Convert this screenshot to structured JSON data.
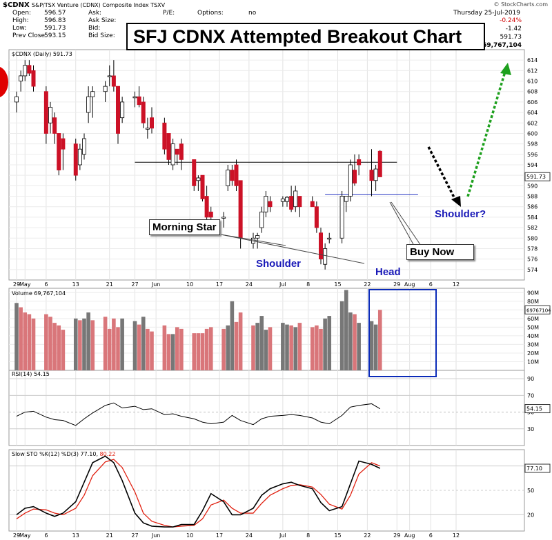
{
  "header": {
    "symbol": "$CDNX",
    "name": "S&P/TSX Venture (CDNX) Composite Index  TSXV",
    "watermark": "© StockCharts.com",
    "date": "Thursday   25-Jul-2019",
    "change_pct": "-0.24%",
    "change": "-1.42",
    "close_value": "591.73",
    "volume_value": "69,767,104",
    "fields": [
      {
        "label": "Open:",
        "value": "596.57"
      },
      {
        "label": "High:",
        "value": "596.83"
      },
      {
        "label": "Low:",
        "value": "591.73"
      },
      {
        "label": "Prev Close:",
        "value": "593.15"
      }
    ],
    "fields2": [
      "Ask:",
      "Ask Size:",
      "Bid:",
      "Bid Size:"
    ],
    "fields3": [
      {
        "label": "P/E:",
        "value": ""
      },
      {
        "label": "Options:",
        "value": "no"
      }
    ]
  },
  "title_box": "SFJ CDNX Attempted Breakout Chart",
  "annotations": {
    "morning_star": "Morning Star",
    "shoulder_left": "Shoulder",
    "head": "Head",
    "buy_now": "Buy Now",
    "shoulder_right": "Shoulder?"
  },
  "colors": {
    "up_candle": "#ffffff",
    "down_candle": "#cc1126",
    "volume_up": "#777777",
    "volume_down": "#d9767a",
    "rsi_line": "#000000",
    "sto_k": "#000000",
    "sto_d": "#e02010",
    "neckline": "#000000",
    "target_arrow": "#1ea01e",
    "down_arrow": "#000000",
    "highlight_box": "#0a2ab8",
    "blue_text": "#1a1ab8"
  },
  "chart_data": [
    {
      "type": "candlestick",
      "title": "$CDNX (Daily) 591.73",
      "ylim": [
        572,
        616
      ],
      "y_ticks": [
        574,
        576,
        578,
        580,
        582,
        584,
        586,
        588,
        590,
        592,
        594,
        596,
        598,
        600,
        602,
        604,
        606,
        608,
        610,
        612,
        614
      ],
      "last_value_label": "591.73",
      "x_tick_labels": [
        "29",
        "May",
        "6",
        "13",
        "21",
        "27",
        "Jun",
        "10",
        "17",
        "24",
        "Jul",
        "8",
        "15",
        "22",
        "29",
        "Aug",
        "6",
        "12"
      ],
      "x_tick_days": [
        0,
        2,
        7,
        14,
        22,
        28,
        33,
        41,
        48,
        55,
        63,
        69,
        76,
        83,
        90,
        93,
        98,
        104
      ],
      "neckline": {
        "y": 594.5,
        "from_day": 28,
        "to_day": 90
      },
      "shoulder_line": {
        "y": 588.3,
        "from_day": 73,
        "to_day": 95
      },
      "candles": [
        {
          "d": 0,
          "o": 606,
          "h": 608,
          "l": 604,
          "c": 607
        },
        {
          "d": 1,
          "o": 610,
          "h": 612,
          "l": 608,
          "c": 611
        },
        {
          "d": 2,
          "o": 611,
          "h": 614,
          "l": 610,
          "c": 613
        },
        {
          "d": 3,
          "o": 613,
          "h": 614,
          "l": 611,
          "c": 611.5
        },
        {
          "d": 4,
          "o": 612,
          "h": 613,
          "l": 608,
          "c": 609
        },
        {
          "d": 7,
          "o": 608,
          "h": 609,
          "l": 598,
          "c": 600
        },
        {
          "d": 8,
          "o": 602,
          "h": 606,
          "l": 600,
          "c": 605
        },
        {
          "d": 9,
          "o": 603,
          "h": 604,
          "l": 598,
          "c": 600
        },
        {
          "d": 10,
          "o": 600,
          "h": 600,
          "l": 592,
          "c": 593
        },
        {
          "d": 11,
          "o": 599,
          "h": 600,
          "l": 593,
          "c": 597
        },
        {
          "d": 14,
          "o": 598,
          "h": 599,
          "l": 591,
          "c": 592
        },
        {
          "d": 15,
          "o": 594,
          "h": 598,
          "l": 593,
          "c": 597
        },
        {
          "d": 16,
          "o": 596,
          "h": 600,
          "l": 595,
          "c": 599
        },
        {
          "d": 17,
          "o": 604,
          "h": 609,
          "l": 602,
          "c": 607
        },
        {
          "d": 18,
          "o": 607,
          "h": 609,
          "l": 603,
          "c": 608
        },
        {
          "d": 21,
          "o": 608,
          "h": 610,
          "l": 606,
          "c": 609
        },
        {
          "d": 22,
          "o": 611,
          "h": 613,
          "l": 609,
          "c": 611
        },
        {
          "d": 23,
          "o": 611,
          "h": 614,
          "l": 608,
          "c": 609
        },
        {
          "d": 24,
          "o": 609,
          "h": 609,
          "l": 598,
          "c": 600
        },
        {
          "d": 25,
          "o": 603,
          "h": 607,
          "l": 602,
          "c": 606
        },
        {
          "d": 28,
          "o": 607,
          "h": 608,
          "l": 605,
          "c": 607
        },
        {
          "d": 29,
          "o": 607,
          "h": 609,
          "l": 605,
          "c": 605.5
        },
        {
          "d": 30,
          "o": 606,
          "h": 607,
          "l": 601,
          "c": 602
        },
        {
          "d": 31,
          "o": 601,
          "h": 603,
          "l": 599,
          "c": 601
        },
        {
          "d": 32,
          "o": 603,
          "h": 605,
          "l": 600,
          "c": 601
        },
        {
          "d": 35,
          "o": 602,
          "h": 603,
          "l": 596,
          "c": 597
        },
        {
          "d": 36,
          "o": 600,
          "h": 600,
          "l": 594,
          "c": 595
        },
        {
          "d": 37,
          "o": 594,
          "h": 599,
          "l": 593,
          "c": 598
        },
        {
          "d": 38,
          "o": 597,
          "h": 597,
          "l": 594,
          "c": 596
        },
        {
          "d": 39,
          "o": 598,
          "h": 599,
          "l": 593,
          "c": 595
        },
        {
          "d": 42,
          "o": 595,
          "h": 595,
          "l": 589,
          "c": 590
        },
        {
          "d": 43,
          "o": 591,
          "h": 592,
          "l": 589,
          "c": 591.5
        },
        {
          "d": 44,
          "o": 592,
          "h": 592,
          "l": 587,
          "c": 587.5
        },
        {
          "d": 45,
          "o": 588,
          "h": 590,
          "l": 583,
          "c": 584
        },
        {
          "d": 46,
          "o": 585,
          "h": 586,
          "l": 583,
          "c": 584
        },
        {
          "d": 49,
          "o": 584,
          "h": 585,
          "l": 582,
          "c": 584
        },
        {
          "d": 50,
          "o": 590,
          "h": 594,
          "l": 589,
          "c": 593
        },
        {
          "d": 51,
          "o": 593,
          "h": 594,
          "l": 590,
          "c": 591
        },
        {
          "d": 52,
          "o": 594,
          "h": 595,
          "l": 589,
          "c": 590
        },
        {
          "d": 53,
          "o": 591,
          "h": 591,
          "l": 578,
          "c": 580
        },
        {
          "d": 56,
          "o": 579,
          "h": 581,
          "l": 578,
          "c": 580
        },
        {
          "d": 57,
          "o": 580,
          "h": 581,
          "l": 578,
          "c": 580.5
        },
        {
          "d": 58,
          "o": 582,
          "h": 586,
          "l": 581,
          "c": 585
        },
        {
          "d": 59,
          "o": 585,
          "h": 589,
          "l": 584,
          "c": 588
        },
        {
          "d": 60,
          "o": 587,
          "h": 588,
          "l": 585,
          "c": 586
        },
        {
          "d": 63,
          "o": 587,
          "h": 588,
          "l": 586,
          "c": 587.5
        },
        {
          "d": 64,
          "o": 587,
          "h": 588,
          "l": 586,
          "c": 587.8
        },
        {
          "d": 65,
          "o": 588,
          "h": 590,
          "l": 585,
          "c": 585.5
        },
        {
          "d": 66,
          "o": 586,
          "h": 590,
          "l": 585,
          "c": 589
        },
        {
          "d": 67,
          "o": 588,
          "h": 588,
          "l": 584,
          "c": 586
        },
        {
          "d": 70,
          "o": 587,
          "h": 588,
          "l": 586,
          "c": 586
        },
        {
          "d": 71,
          "o": 586,
          "h": 587,
          "l": 581,
          "c": 582
        },
        {
          "d": 72,
          "o": 581,
          "h": 582,
          "l": 575,
          "c": 576
        },
        {
          "d": 73,
          "o": 575,
          "h": 579,
          "l": 574,
          "c": 578
        },
        {
          "d": 74,
          "o": 580,
          "h": 581,
          "l": 579,
          "c": 580
        },
        {
          "d": 77,
          "o": 580,
          "h": 589,
          "l": 579,
          "c": 588
        },
        {
          "d": 78,
          "o": 587,
          "h": 588,
          "l": 585,
          "c": 588
        },
        {
          "d": 79,
          "o": 588,
          "h": 595,
          "l": 587,
          "c": 594
        },
        {
          "d": 80,
          "o": 593,
          "h": 596,
          "l": 590,
          "c": 590.5
        },
        {
          "d": 81,
          "o": 595,
          "h": 596,
          "l": 592,
          "c": 594
        },
        {
          "d": 84,
          "o": 593,
          "h": 597,
          "l": 588,
          "c": 591
        },
        {
          "d": 85,
          "o": 591,
          "h": 594,
          "l": 589,
          "c": 593.2
        },
        {
          "d": 86,
          "o": 596.6,
          "h": 596.8,
          "l": 591.7,
          "c": 591.7
        }
      ]
    },
    {
      "type": "bar",
      "title": "Volume 69,767,104",
      "ylim": [
        0,
        95
      ],
      "y_ticks_label": [
        "10M",
        "20M",
        "30M",
        "40M",
        "50M",
        "60M",
        "70M",
        "80M",
        "90M"
      ],
      "y_ticks": [
        10,
        20,
        30,
        40,
        50,
        60,
        70,
        80,
        90
      ],
      "last_value_label": "69767104",
      "bars_days": [
        0,
        1,
        2,
        3,
        4,
        7,
        8,
        9,
        10,
        11,
        14,
        15,
        16,
        17,
        18,
        21,
        22,
        23,
        24,
        25,
        28,
        29,
        30,
        31,
        32,
        35,
        36,
        37,
        38,
        39,
        42,
        43,
        44,
        45,
        46,
        49,
        50,
        51,
        52,
        53,
        56,
        57,
        58,
        59,
        60,
        63,
        64,
        65,
        66,
        67,
        70,
        71,
        72,
        73,
        74,
        77,
        78,
        79,
        80,
        81,
        84,
        85,
        86
      ],
      "values": [
        78,
        73,
        67,
        65,
        60,
        65,
        62,
        55,
        52,
        47,
        60,
        58,
        60,
        67,
        58,
        62,
        48,
        60,
        50,
        60,
        57,
        53,
        62,
        48,
        45,
        52,
        42,
        42,
        50,
        48,
        43,
        43,
        43,
        48,
        50,
        48,
        52,
        80,
        56,
        67,
        52,
        55,
        63,
        47,
        50,
        55,
        53,
        52,
        50,
        55,
        50,
        52,
        48,
        60,
        63,
        80,
        93,
        67,
        65,
        55,
        57,
        53,
        70
      ],
      "up": [
        true,
        false,
        false,
        false,
        false,
        false,
        false,
        false,
        false,
        false,
        true,
        false,
        true,
        true,
        false,
        false,
        false,
        false,
        false,
        true,
        true,
        false,
        true,
        false,
        false,
        false,
        false,
        true,
        false,
        false,
        false,
        false,
        false,
        false,
        false,
        false,
        true,
        true,
        false,
        false,
        false,
        true,
        true,
        true,
        false,
        true,
        true,
        false,
        true,
        false,
        false,
        false,
        false,
        true,
        true,
        true,
        true,
        true,
        false,
        true,
        true,
        true,
        false
      ]
    },
    {
      "type": "line",
      "title": "RSI(14) 54.15",
      "ylim": [
        10,
        100
      ],
      "y_ticks": [
        30,
        50,
        70,
        90
      ],
      "last_value_label": "54.15",
      "x_days": [
        0,
        2,
        4,
        7,
        9,
        11,
        14,
        16,
        18,
        21,
        23,
        25,
        28,
        30,
        32,
        35,
        37,
        39,
        42,
        44,
        46,
        49,
        51,
        53,
        56,
        58,
        60,
        63,
        65,
        67,
        70,
        72,
        74,
        77,
        79,
        81,
        84,
        86
      ],
      "values": [
        45,
        50,
        51,
        44,
        41,
        40,
        34,
        42,
        49,
        58,
        61,
        55,
        57,
        53,
        54,
        47,
        48,
        45,
        42,
        38,
        36,
        38,
        46,
        40,
        35,
        42,
        45,
        46,
        47,
        46,
        43,
        38,
        36,
        46,
        56,
        58,
        60,
        54
      ]
    },
    {
      "type": "line",
      "title": "Slow STO %K(12) %D(3) 77.10, 80.22",
      "ylim": [
        0,
        100
      ],
      "y_ticks": [
        20,
        50,
        80
      ],
      "last_value_label": "77.10",
      "series": [
        {
          "name": "%K(12)",
          "x_days": [
            0,
            2,
            4,
            7,
            9,
            11,
            14,
            16,
            18,
            21,
            23,
            25,
            28,
            30,
            32,
            35,
            37,
            39,
            42,
            44,
            46,
            49,
            51,
            53,
            56,
            58,
            60,
            63,
            65,
            67,
            70,
            72,
            74,
            77,
            79,
            81,
            84,
            86
          ],
          "values": [
            20,
            28,
            30,
            22,
            18,
            22,
            36,
            60,
            84,
            92,
            84,
            62,
            22,
            10,
            6,
            5,
            5,
            8,
            8,
            25,
            46,
            36,
            20,
            20,
            28,
            44,
            52,
            58,
            60,
            56,
            52,
            35,
            25,
            30,
            58,
            86,
            82,
            77
          ]
        },
        {
          "name": "%D(3)",
          "x_days": [
            0,
            2,
            4,
            7,
            9,
            11,
            14,
            16,
            18,
            21,
            23,
            25,
            28,
            30,
            32,
            35,
            37,
            39,
            42,
            44,
            46,
            49,
            51,
            53,
            56,
            58,
            60,
            63,
            65,
            67,
            70,
            72,
            74,
            77,
            79,
            81,
            84,
            86
          ],
          "values": [
            15,
            22,
            27,
            26,
            22,
            20,
            28,
            44,
            68,
            85,
            88,
            78,
            48,
            22,
            12,
            7,
            5,
            6,
            7,
            15,
            32,
            38,
            28,
            22,
            22,
            34,
            44,
            52,
            56,
            57,
            54,
            45,
            33,
            27,
            44,
            70,
            84,
            80
          ]
        }
      ]
    }
  ]
}
